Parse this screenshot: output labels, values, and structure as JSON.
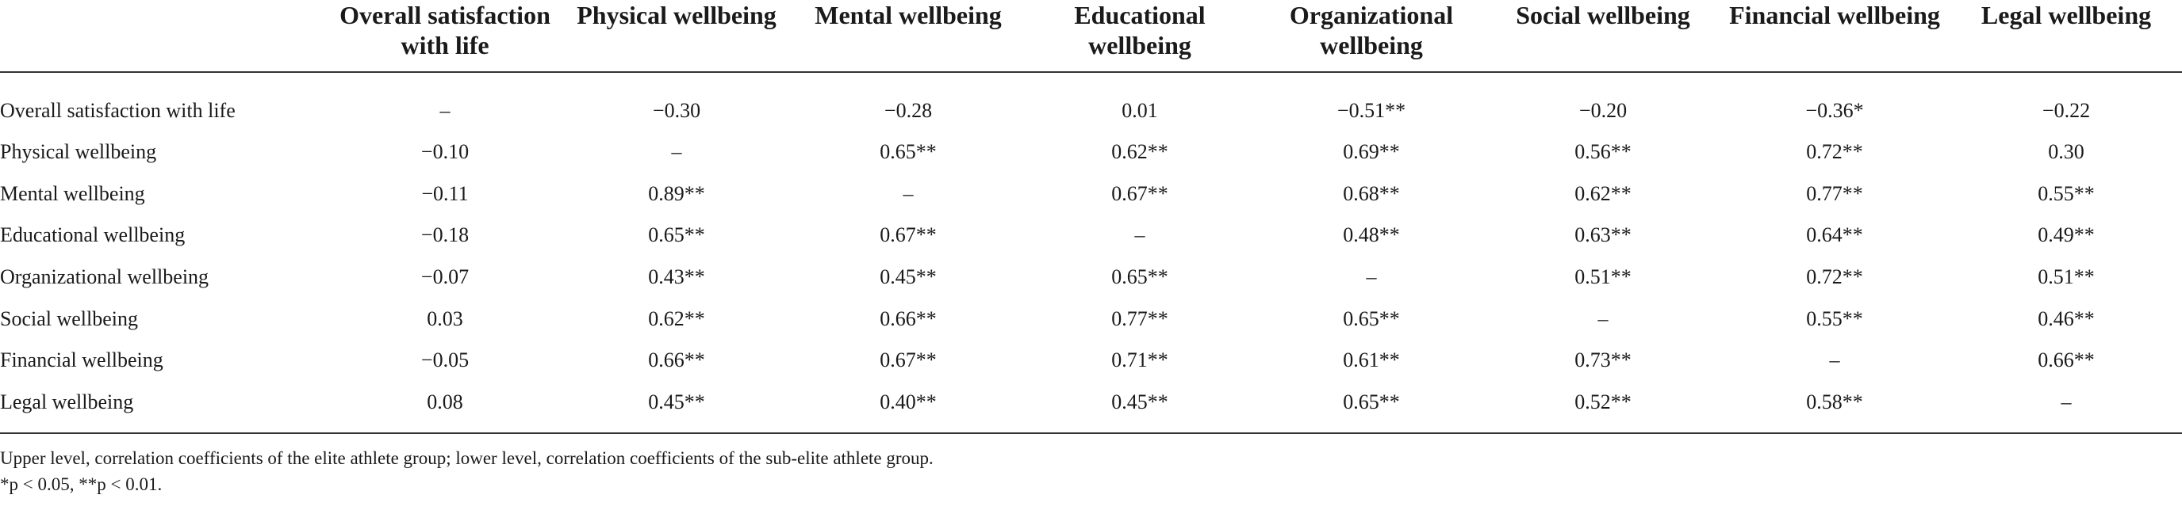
{
  "table": {
    "columns": [
      "",
      "Overall satisfaction with life",
      "Physical wellbeing",
      "Mental wellbeing",
      "Educational wellbeing",
      "Organizational wellbeing",
      "Social wellbeing",
      "Financial wellbeing",
      "Legal wellbeing"
    ],
    "rows": [
      {
        "label": "Overall satisfaction with life",
        "cells": [
          "–",
          "−0.30",
          "−0.28",
          "0.01",
          "−0.51**",
          "−0.20",
          "−0.36*",
          "−0.22"
        ]
      },
      {
        "label": "Physical wellbeing",
        "cells": [
          "−0.10",
          "–",
          "0.65**",
          "0.62**",
          "0.69**",
          "0.56**",
          "0.72**",
          "0.30"
        ]
      },
      {
        "label": "Mental wellbeing",
        "cells": [
          "−0.11",
          "0.89**",
          "–",
          "0.67**",
          "0.68**",
          "0.62**",
          "0.77**",
          "0.55**"
        ]
      },
      {
        "label": "Educational wellbeing",
        "cells": [
          "−0.18",
          "0.65**",
          "0.67**",
          "–",
          "0.48**",
          "0.63**",
          "0.64**",
          "0.49**"
        ]
      },
      {
        "label": "Organizational wellbeing",
        "cells": [
          "−0.07",
          "0.43**",
          "0.45**",
          "0.65**",
          "–",
          "0.51**",
          "0.72**",
          "0.51**"
        ]
      },
      {
        "label": "Social wellbeing",
        "cells": [
          "0.03",
          "0.62**",
          "0.66**",
          "0.77**",
          "0.65**",
          "–",
          "0.55**",
          "0.46**"
        ]
      },
      {
        "label": "Financial wellbeing",
        "cells": [
          "−0.05",
          "0.66**",
          "0.67**",
          "0.71**",
          "0.61**",
          "0.73**",
          "–",
          "0.66**"
        ]
      },
      {
        "label": "Legal wellbeing",
        "cells": [
          "0.08",
          "0.45**",
          "0.40**",
          "0.45**",
          "0.65**",
          "0.52**",
          "0.58**",
          "–"
        ]
      }
    ]
  },
  "notes": {
    "line1": "Upper level, correlation coefficients of the elite athlete group; lower level, correlation coefficients of the sub-elite athlete group.",
    "line2": "*p < 0.05, **p < 0.01."
  }
}
